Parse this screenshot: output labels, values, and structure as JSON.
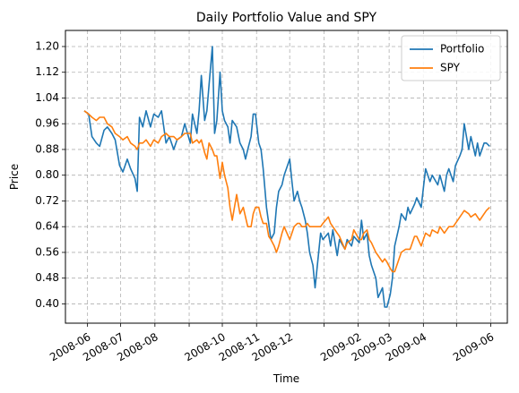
{
  "chart_data": {
    "type": "line",
    "title": "Daily Portfolio Value and SPY",
    "xlabel": "Time",
    "ylabel": "Price",
    "xlim": [
      "2008-05-12",
      "2009-06-16"
    ],
    "ylim": [
      0.34,
      1.25
    ],
    "grid": true,
    "legend_position": "top-right",
    "x_ticks": [
      "2008-06-01",
      "2008-07-01",
      "2008-08-01",
      "2008-09-01",
      "2008-10-01",
      "2008-11-01",
      "2008-12-01",
      "2009-01-01",
      "2009-02-01",
      "2009-03-01",
      "2009-04-01",
      "2009-05-01",
      "2009-06-01"
    ],
    "x_tick_labels": [
      "2008-06",
      "2008-07",
      "2008-08",
      "2008-10",
      "2008-11",
      "2008-12",
      "2009-02",
      "2009-03",
      "2009-04",
      "2009-06"
    ],
    "x_tick_label_dates": [
      "2008-06-01",
      "2008-07-01",
      "2008-08-01",
      "2008-10-01",
      "2008-11-01",
      "2008-12-01",
      "2009-02-01",
      "2009-03-01",
      "2009-04-01",
      "2009-06-01"
    ],
    "y_ticks": [
      0.4,
      0.48,
      0.56,
      0.64,
      0.72,
      0.8,
      0.88,
      0.96,
      1.04,
      1.12,
      1.2
    ],
    "y_tick_labels": [
      "0.40",
      "0.48",
      "0.56",
      "0.64",
      "0.72",
      "0.80",
      "0.88",
      "0.96",
      "1.04",
      "1.12",
      "1.20"
    ],
    "series": [
      {
        "name": "Portfolio",
        "color": "#1f77b4",
        "points": [
          [
            "2008-05-29",
            1.0
          ],
          [
            "2008-06-02",
            0.99
          ],
          [
            "2008-06-05",
            0.92
          ],
          [
            "2008-06-09",
            0.9
          ],
          [
            "2008-06-12",
            0.89
          ],
          [
            "2008-06-16",
            0.94
          ],
          [
            "2008-06-19",
            0.95
          ],
          [
            "2008-06-23",
            0.93
          ],
          [
            "2008-06-26",
            0.91
          ],
          [
            "2008-06-30",
            0.83
          ],
          [
            "2008-07-03",
            0.81
          ],
          [
            "2008-07-07",
            0.85
          ],
          [
            "2008-07-10",
            0.82
          ],
          [
            "2008-07-14",
            0.79
          ],
          [
            "2008-07-16",
            0.75
          ],
          [
            "2008-07-18",
            0.98
          ],
          [
            "2008-07-21",
            0.95
          ],
          [
            "2008-07-24",
            1.0
          ],
          [
            "2008-07-28",
            0.95
          ],
          [
            "2008-07-31",
            0.99
          ],
          [
            "2008-08-04",
            0.98
          ],
          [
            "2008-08-07",
            1.0
          ],
          [
            "2008-08-11",
            0.9
          ],
          [
            "2008-08-14",
            0.92
          ],
          [
            "2008-08-18",
            0.88
          ],
          [
            "2008-08-21",
            0.91
          ],
          [
            "2008-08-25",
            0.92
          ],
          [
            "2008-08-28",
            0.96
          ],
          [
            "2008-09-02",
            0.9
          ],
          [
            "2008-09-04",
            0.99
          ],
          [
            "2008-09-08",
            0.93
          ],
          [
            "2008-09-10",
            1.0
          ],
          [
            "2008-09-12",
            1.11
          ],
          [
            "2008-09-15",
            0.97
          ],
          [
            "2008-09-17",
            1.0
          ],
          [
            "2008-09-19",
            1.08
          ],
          [
            "2008-09-22",
            1.2
          ],
          [
            "2008-09-24",
            0.93
          ],
          [
            "2008-09-26",
            0.97
          ],
          [
            "2008-09-29",
            1.12
          ],
          [
            "2008-10-01",
            1.0
          ],
          [
            "2008-10-03",
            0.97
          ],
          [
            "2008-10-06",
            0.95
          ],
          [
            "2008-10-08",
            0.9
          ],
          [
            "2008-10-10",
            0.97
          ],
          [
            "2008-10-14",
            0.95
          ],
          [
            "2008-10-17",
            0.9
          ],
          [
            "2008-10-20",
            0.88
          ],
          [
            "2008-10-22",
            0.85
          ],
          [
            "2008-10-24",
            0.88
          ],
          [
            "2008-10-27",
            0.92
          ],
          [
            "2008-10-29",
            0.99
          ],
          [
            "2008-10-31",
            0.99
          ],
          [
            "2008-11-03",
            0.9
          ],
          [
            "2008-11-05",
            0.88
          ],
          [
            "2008-11-07",
            0.82
          ],
          [
            "2008-11-10",
            0.7
          ],
          [
            "2008-11-12",
            0.65
          ],
          [
            "2008-11-14",
            0.6
          ],
          [
            "2008-11-17",
            0.62
          ],
          [
            "2008-11-19",
            0.7
          ],
          [
            "2008-11-21",
            0.75
          ],
          [
            "2008-11-24",
            0.77
          ],
          [
            "2008-11-26",
            0.8
          ],
          [
            "2008-12-01",
            0.85
          ],
          [
            "2008-12-03",
            0.78
          ],
          [
            "2008-12-05",
            0.72
          ],
          [
            "2008-12-08",
            0.75
          ],
          [
            "2008-12-10",
            0.72
          ],
          [
            "2008-12-12",
            0.7
          ],
          [
            "2008-12-15",
            0.66
          ],
          [
            "2008-12-17",
            0.62
          ],
          [
            "2008-12-19",
            0.56
          ],
          [
            "2008-12-22",
            0.52
          ],
          [
            "2008-12-24",
            0.45
          ],
          [
            "2008-12-29",
            0.62
          ],
          [
            "2008-12-31",
            0.6
          ],
          [
            "2009-01-05",
            0.62
          ],
          [
            "2009-01-07",
            0.58
          ],
          [
            "2009-01-09",
            0.63
          ],
          [
            "2009-01-13",
            0.55
          ],
          [
            "2009-01-15",
            0.6
          ],
          [
            "2009-01-20",
            0.57
          ],
          [
            "2009-01-22",
            0.6
          ],
          [
            "2009-01-26",
            0.58
          ],
          [
            "2009-01-28",
            0.61
          ],
          [
            "2009-02-02",
            0.59
          ],
          [
            "2009-02-04",
            0.66
          ],
          [
            "2009-02-06",
            0.6
          ],
          [
            "2009-02-09",
            0.62
          ],
          [
            "2009-02-11",
            0.55
          ],
          [
            "2009-02-13",
            0.52
          ],
          [
            "2009-02-17",
            0.48
          ],
          [
            "2009-02-19",
            0.42
          ],
          [
            "2009-02-23",
            0.45
          ],
          [
            "2009-02-25",
            0.39
          ],
          [
            "2009-02-27",
            0.39
          ],
          [
            "2009-03-02",
            0.43
          ],
          [
            "2009-03-04",
            0.48
          ],
          [
            "2009-03-06",
            0.58
          ],
          [
            "2009-03-10",
            0.64
          ],
          [
            "2009-03-12",
            0.68
          ],
          [
            "2009-03-16",
            0.66
          ],
          [
            "2009-03-18",
            0.7
          ],
          [
            "2009-03-20",
            0.68
          ],
          [
            "2009-03-24",
            0.71
          ],
          [
            "2009-03-26",
            0.73
          ],
          [
            "2009-03-30",
            0.7
          ],
          [
            "2009-04-01",
            0.76
          ],
          [
            "2009-04-03",
            0.82
          ],
          [
            "2009-04-07",
            0.78
          ],
          [
            "2009-04-09",
            0.8
          ],
          [
            "2009-04-14",
            0.77
          ],
          [
            "2009-04-16",
            0.8
          ],
          [
            "2009-04-20",
            0.75
          ],
          [
            "2009-04-22",
            0.8
          ],
          [
            "2009-04-24",
            0.82
          ],
          [
            "2009-04-28",
            0.78
          ],
          [
            "2009-04-30",
            0.83
          ],
          [
            "2009-05-04",
            0.86
          ],
          [
            "2009-05-06",
            0.88
          ],
          [
            "2009-05-08",
            0.96
          ],
          [
            "2009-05-12",
            0.88
          ],
          [
            "2009-05-14",
            0.92
          ],
          [
            "2009-05-18",
            0.86
          ],
          [
            "2009-05-20",
            0.9
          ],
          [
            "2009-05-22",
            0.86
          ],
          [
            "2009-05-26",
            0.9
          ],
          [
            "2009-05-28",
            0.9
          ],
          [
            "2009-05-31",
            0.89
          ]
        ]
      },
      {
        "name": "SPY",
        "color": "#ff7f0e",
        "points": [
          [
            "2008-05-29",
            1.0
          ],
          [
            "2008-06-02",
            0.99
          ],
          [
            "2008-06-05",
            0.98
          ],
          [
            "2008-06-09",
            0.97
          ],
          [
            "2008-06-12",
            0.98
          ],
          [
            "2008-06-16",
            0.98
          ],
          [
            "2008-06-19",
            0.96
          ],
          [
            "2008-06-23",
            0.95
          ],
          [
            "2008-06-26",
            0.93
          ],
          [
            "2008-06-30",
            0.92
          ],
          [
            "2008-07-03",
            0.91
          ],
          [
            "2008-07-07",
            0.92
          ],
          [
            "2008-07-10",
            0.9
          ],
          [
            "2008-07-14",
            0.89
          ],
          [
            "2008-07-16",
            0.88
          ],
          [
            "2008-07-18",
            0.9
          ],
          [
            "2008-07-21",
            0.9
          ],
          [
            "2008-07-24",
            0.91
          ],
          [
            "2008-07-28",
            0.89
          ],
          [
            "2008-07-31",
            0.91
          ],
          [
            "2008-08-04",
            0.9
          ],
          [
            "2008-08-07",
            0.92
          ],
          [
            "2008-08-11",
            0.93
          ],
          [
            "2008-08-14",
            0.92
          ],
          [
            "2008-08-18",
            0.92
          ],
          [
            "2008-08-21",
            0.91
          ],
          [
            "2008-08-25",
            0.92
          ],
          [
            "2008-08-28",
            0.93
          ],
          [
            "2008-09-02",
            0.93
          ],
          [
            "2008-09-04",
            0.9
          ],
          [
            "2008-09-08",
            0.91
          ],
          [
            "2008-09-10",
            0.9
          ],
          [
            "2008-09-12",
            0.91
          ],
          [
            "2008-09-15",
            0.87
          ],
          [
            "2008-09-17",
            0.85
          ],
          [
            "2008-09-19",
            0.9
          ],
          [
            "2008-09-22",
            0.88
          ],
          [
            "2008-09-24",
            0.86
          ],
          [
            "2008-09-26",
            0.86
          ],
          [
            "2008-09-29",
            0.79
          ],
          [
            "2008-10-01",
            0.84
          ],
          [
            "2008-10-03",
            0.8
          ],
          [
            "2008-10-06",
            0.76
          ],
          [
            "2008-10-08",
            0.7
          ],
          [
            "2008-10-10",
            0.66
          ],
          [
            "2008-10-14",
            0.74
          ],
          [
            "2008-10-17",
            0.68
          ],
          [
            "2008-10-20",
            0.7
          ],
          [
            "2008-10-22",
            0.67
          ],
          [
            "2008-10-24",
            0.64
          ],
          [
            "2008-10-27",
            0.64
          ],
          [
            "2008-10-29",
            0.68
          ],
          [
            "2008-10-31",
            0.7
          ],
          [
            "2008-11-03",
            0.7
          ],
          [
            "2008-11-05",
            0.67
          ],
          [
            "2008-11-07",
            0.65
          ],
          [
            "2008-11-10",
            0.65
          ],
          [
            "2008-11-12",
            0.61
          ],
          [
            "2008-11-14",
            0.6
          ],
          [
            "2008-11-17",
            0.58
          ],
          [
            "2008-11-19",
            0.56
          ],
          [
            "2008-11-21",
            0.58
          ],
          [
            "2008-11-24",
            0.62
          ],
          [
            "2008-11-26",
            0.64
          ],
          [
            "2008-12-01",
            0.6
          ],
          [
            "2008-12-03",
            0.62
          ],
          [
            "2008-12-05",
            0.64
          ],
          [
            "2008-12-08",
            0.65
          ],
          [
            "2008-12-10",
            0.65
          ],
          [
            "2008-12-12",
            0.64
          ],
          [
            "2008-12-15",
            0.64
          ],
          [
            "2008-12-17",
            0.65
          ],
          [
            "2008-12-19",
            0.64
          ],
          [
            "2008-12-22",
            0.64
          ],
          [
            "2008-12-24",
            0.64
          ],
          [
            "2008-12-29",
            0.64
          ],
          [
            "2008-12-31",
            0.65
          ],
          [
            "2009-01-05",
            0.67
          ],
          [
            "2009-01-07",
            0.65
          ],
          [
            "2009-01-09",
            0.64
          ],
          [
            "2009-01-13",
            0.62
          ],
          [
            "2009-01-15",
            0.61
          ],
          [
            "2009-01-20",
            0.57
          ],
          [
            "2009-01-22",
            0.59
          ],
          [
            "2009-01-26",
            0.6
          ],
          [
            "2009-01-28",
            0.63
          ],
          [
            "2009-02-02",
            0.6
          ],
          [
            "2009-02-04",
            0.6
          ],
          [
            "2009-02-06",
            0.62
          ],
          [
            "2009-02-09",
            0.63
          ],
          [
            "2009-02-11",
            0.6
          ],
          [
            "2009-02-13",
            0.59
          ],
          [
            "2009-02-17",
            0.56
          ],
          [
            "2009-02-19",
            0.55
          ],
          [
            "2009-02-23",
            0.53
          ],
          [
            "2009-02-25",
            0.54
          ],
          [
            "2009-02-27",
            0.53
          ],
          [
            "2009-03-02",
            0.51
          ],
          [
            "2009-03-04",
            0.5
          ],
          [
            "2009-03-06",
            0.5
          ],
          [
            "2009-03-10",
            0.54
          ],
          [
            "2009-03-12",
            0.56
          ],
          [
            "2009-03-16",
            0.57
          ],
          [
            "2009-03-18",
            0.57
          ],
          [
            "2009-03-20",
            0.57
          ],
          [
            "2009-03-24",
            0.61
          ],
          [
            "2009-03-26",
            0.61
          ],
          [
            "2009-03-30",
            0.58
          ],
          [
            "2009-04-01",
            0.6
          ],
          [
            "2009-04-03",
            0.62
          ],
          [
            "2009-04-07",
            0.61
          ],
          [
            "2009-04-09",
            0.63
          ],
          [
            "2009-04-14",
            0.62
          ],
          [
            "2009-04-16",
            0.64
          ],
          [
            "2009-04-20",
            0.62
          ],
          [
            "2009-04-22",
            0.63
          ],
          [
            "2009-04-24",
            0.64
          ],
          [
            "2009-04-28",
            0.64
          ],
          [
            "2009-04-30",
            0.65
          ],
          [
            "2009-05-04",
            0.67
          ],
          [
            "2009-05-06",
            0.68
          ],
          [
            "2009-05-08",
            0.69
          ],
          [
            "2009-05-12",
            0.68
          ],
          [
            "2009-05-14",
            0.67
          ],
          [
            "2009-05-18",
            0.68
          ],
          [
            "2009-05-20",
            0.67
          ],
          [
            "2009-05-22",
            0.66
          ],
          [
            "2009-05-26",
            0.68
          ],
          [
            "2009-05-28",
            0.69
          ],
          [
            "2009-05-31",
            0.7
          ]
        ]
      }
    ]
  }
}
